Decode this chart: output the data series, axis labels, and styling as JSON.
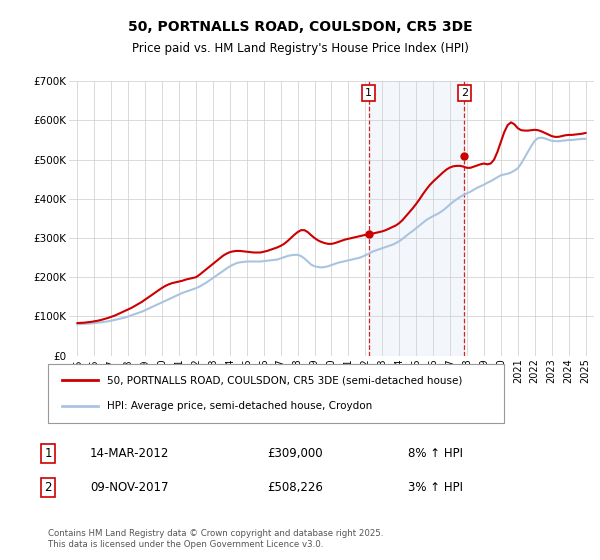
{
  "title1": "50, PORTNALLS ROAD, COULSDON, CR5 3DE",
  "title2": "Price paid vs. HM Land Registry's House Price Index (HPI)",
  "legend_line1": "50, PORTNALLS ROAD, COULSDON, CR5 3DE (semi-detached house)",
  "legend_line2": "HPI: Average price, semi-detached house, Croydon",
  "footnote": "Contains HM Land Registry data © Crown copyright and database right 2025.\nThis data is licensed under the Open Government Licence v3.0.",
  "point1_label": "1",
  "point1_date": "14-MAR-2012",
  "point1_price": "£309,000",
  "point1_hpi": "8% ↑ HPI",
  "point1_year": 2012.2,
  "point1_value": 309000,
  "point2_label": "2",
  "point2_date": "09-NOV-2017",
  "point2_price": "£508,226",
  "point2_hpi": "3% ↑ HPI",
  "point2_year": 2017.85,
  "point2_value": 508226,
  "hpi_color": "#aac4e0",
  "price_color": "#cc0000",
  "background_color": "#ffffff",
  "grid_color": "#cccccc",
  "ylim": [
    0,
    700000
  ],
  "yticks": [
    0,
    100000,
    200000,
    300000,
    400000,
    500000,
    600000,
    700000
  ],
  "ytick_labels": [
    "£0",
    "£100K",
    "£200K",
    "£300K",
    "£400K",
    "£500K",
    "£600K",
    "£700K"
  ],
  "xlim": [
    1994.5,
    2025.5
  ],
  "xticks": [
    1995,
    1996,
    1997,
    1998,
    1999,
    2000,
    2001,
    2002,
    2003,
    2004,
    2005,
    2006,
    2007,
    2008,
    2009,
    2010,
    2011,
    2012,
    2013,
    2014,
    2015,
    2016,
    2017,
    2018,
    2019,
    2020,
    2021,
    2022,
    2023,
    2024,
    2025
  ],
  "hpi_x": [
    1995.0,
    1995.2,
    1995.4,
    1995.6,
    1995.8,
    1996.0,
    1996.2,
    1996.4,
    1996.6,
    1996.8,
    1997.0,
    1997.2,
    1997.4,
    1997.6,
    1997.8,
    1998.0,
    1998.2,
    1998.4,
    1998.6,
    1998.8,
    1999.0,
    1999.2,
    1999.4,
    1999.6,
    1999.8,
    2000.0,
    2000.2,
    2000.4,
    2000.6,
    2000.8,
    2001.0,
    2001.2,
    2001.4,
    2001.6,
    2001.8,
    2002.0,
    2002.2,
    2002.4,
    2002.6,
    2002.8,
    2003.0,
    2003.2,
    2003.4,
    2003.6,
    2003.8,
    2004.0,
    2004.2,
    2004.4,
    2004.6,
    2004.8,
    2005.0,
    2005.2,
    2005.4,
    2005.6,
    2005.8,
    2006.0,
    2006.2,
    2006.4,
    2006.6,
    2006.8,
    2007.0,
    2007.2,
    2007.4,
    2007.6,
    2007.8,
    2008.0,
    2008.2,
    2008.4,
    2008.6,
    2008.8,
    2009.0,
    2009.2,
    2009.4,
    2009.6,
    2009.8,
    2010.0,
    2010.2,
    2010.4,
    2010.6,
    2010.8,
    2011.0,
    2011.2,
    2011.4,
    2011.6,
    2011.8,
    2012.0,
    2012.2,
    2012.4,
    2012.6,
    2012.8,
    2013.0,
    2013.2,
    2013.4,
    2013.6,
    2013.8,
    2014.0,
    2014.2,
    2014.4,
    2014.6,
    2014.8,
    2015.0,
    2015.2,
    2015.4,
    2015.6,
    2015.8,
    2016.0,
    2016.2,
    2016.4,
    2016.6,
    2016.8,
    2017.0,
    2017.2,
    2017.4,
    2017.6,
    2017.8,
    2018.0,
    2018.2,
    2018.4,
    2018.6,
    2018.8,
    2019.0,
    2019.2,
    2019.4,
    2019.6,
    2019.8,
    2020.0,
    2020.2,
    2020.4,
    2020.6,
    2020.8,
    2021.0,
    2021.2,
    2021.4,
    2021.6,
    2021.8,
    2022.0,
    2022.2,
    2022.4,
    2022.6,
    2022.8,
    2023.0,
    2023.2,
    2023.4,
    2023.6,
    2023.8,
    2024.0,
    2024.2,
    2024.4,
    2024.6,
    2024.8,
    2025.0
  ],
  "hpi_y": [
    80000,
    80500,
    81000,
    81500,
    82000,
    83000,
    84000,
    85000,
    86000,
    87500,
    89000,
    91000,
    93000,
    95000,
    97000,
    100000,
    103000,
    106000,
    109000,
    112000,
    116000,
    120000,
    124000,
    128000,
    132000,
    136000,
    140000,
    144000,
    148000,
    152000,
    156000,
    160000,
    163000,
    166000,
    169000,
    172000,
    176000,
    181000,
    186000,
    192000,
    198000,
    204000,
    210000,
    216000,
    222000,
    228000,
    232000,
    236000,
    238000,
    239000,
    240000,
    240000,
    240000,
    240000,
    240000,
    241000,
    242000,
    243000,
    244000,
    245000,
    248000,
    251000,
    254000,
    256000,
    257000,
    257000,
    254000,
    248000,
    240000,
    232000,
    228000,
    226000,
    225000,
    226000,
    228000,
    231000,
    234000,
    237000,
    239000,
    241000,
    243000,
    245000,
    247000,
    249000,
    252000,
    256000,
    260000,
    265000,
    268000,
    271000,
    274000,
    277000,
    280000,
    283000,
    287000,
    292000,
    298000,
    305000,
    312000,
    318000,
    325000,
    332000,
    339000,
    346000,
    351000,
    356000,
    360000,
    365000,
    371000,
    378000,
    386000,
    393000,
    399000,
    405000,
    410000,
    414000,
    418000,
    423000,
    428000,
    432000,
    436000,
    441000,
    445000,
    450000,
    455000,
    460000,
    462000,
    464000,
    467000,
    472000,
    478000,
    490000,
    505000,
    520000,
    535000,
    548000,
    555000,
    556000,
    554000,
    551000,
    548000,
    547000,
    547000,
    548000,
    549000,
    550000,
    550000,
    551000,
    552000,
    553000,
    553000
  ],
  "price_x": [
    1995.0,
    1995.2,
    1995.4,
    1995.6,
    1995.8,
    1996.0,
    1996.2,
    1996.4,
    1996.6,
    1996.8,
    1997.0,
    1997.2,
    1997.4,
    1997.6,
    1997.8,
    1998.0,
    1998.2,
    1998.4,
    1998.6,
    1998.8,
    1999.0,
    1999.2,
    1999.4,
    1999.6,
    1999.8,
    2000.0,
    2000.2,
    2000.4,
    2000.6,
    2000.8,
    2001.0,
    2001.2,
    2001.4,
    2001.6,
    2001.8,
    2002.0,
    2002.2,
    2002.4,
    2002.6,
    2002.8,
    2003.0,
    2003.2,
    2003.4,
    2003.6,
    2003.8,
    2004.0,
    2004.2,
    2004.4,
    2004.6,
    2004.8,
    2005.0,
    2005.2,
    2005.4,
    2005.6,
    2005.8,
    2006.0,
    2006.2,
    2006.4,
    2006.6,
    2006.8,
    2007.0,
    2007.2,
    2007.4,
    2007.6,
    2007.8,
    2008.0,
    2008.2,
    2008.4,
    2008.6,
    2008.8,
    2009.0,
    2009.2,
    2009.4,
    2009.6,
    2009.8,
    2010.0,
    2010.2,
    2010.4,
    2010.6,
    2010.8,
    2011.0,
    2011.2,
    2011.4,
    2011.6,
    2011.8,
    2012.0,
    2012.2,
    2012.4,
    2012.6,
    2012.8,
    2013.0,
    2013.2,
    2013.4,
    2013.6,
    2013.8,
    2014.0,
    2014.2,
    2014.4,
    2014.6,
    2014.8,
    2015.0,
    2015.2,
    2015.4,
    2015.6,
    2015.8,
    2016.0,
    2016.2,
    2016.4,
    2016.6,
    2016.8,
    2017.0,
    2017.2,
    2017.4,
    2017.6,
    2017.8,
    2018.0,
    2018.2,
    2018.4,
    2018.6,
    2018.8,
    2019.0,
    2019.2,
    2019.4,
    2019.6,
    2019.8,
    2020.0,
    2020.2,
    2020.4,
    2020.6,
    2020.8,
    2021.0,
    2021.2,
    2021.4,
    2021.6,
    2021.8,
    2022.0,
    2022.2,
    2022.4,
    2022.6,
    2022.8,
    2023.0,
    2023.2,
    2023.4,
    2023.6,
    2023.8,
    2024.0,
    2024.2,
    2024.4,
    2024.6,
    2024.8,
    2025.0
  ],
  "price_y": [
    83000,
    83500,
    84000,
    85000,
    86000,
    87500,
    89000,
    91000,
    93500,
    96000,
    99000,
    102000,
    106000,
    110000,
    114000,
    118000,
    122000,
    127000,
    132000,
    137000,
    143000,
    149000,
    155000,
    161000,
    167000,
    173000,
    178000,
    182000,
    185000,
    187000,
    189000,
    191000,
    194000,
    196000,
    198000,
    200000,
    206000,
    213000,
    220000,
    227000,
    234000,
    241000,
    248000,
    255000,
    260000,
    264000,
    266000,
    267000,
    267000,
    266000,
    265000,
    264000,
    263000,
    263000,
    263000,
    265000,
    267000,
    270000,
    273000,
    276000,
    280000,
    285000,
    292000,
    300000,
    308000,
    315000,
    320000,
    320000,
    315000,
    307000,
    300000,
    294000,
    290000,
    287000,
    285000,
    285000,
    287000,
    290000,
    293000,
    296000,
    298000,
    300000,
    302000,
    304000,
    306000,
    308000,
    309000,
    311000,
    313000,
    315000,
    317000,
    320000,
    324000,
    328000,
    332000,
    338000,
    346000,
    356000,
    366000,
    376000,
    387000,
    399000,
    412000,
    424000,
    435000,
    444000,
    452000,
    460000,
    468000,
    475000,
    480000,
    483000,
    484000,
    484000,
    482000,
    479000,
    479000,
    482000,
    485000,
    488000,
    490000,
    488000,
    490000,
    500000,
    520000,
    545000,
    570000,
    588000,
    595000,
    590000,
    580000,
    575000,
    574000,
    574000,
    575000,
    576000,
    575000,
    572000,
    568000,
    564000,
    560000,
    558000,
    558000,
    560000,
    562000,
    563000,
    563000,
    564000,
    565000,
    566000,
    568000
  ]
}
